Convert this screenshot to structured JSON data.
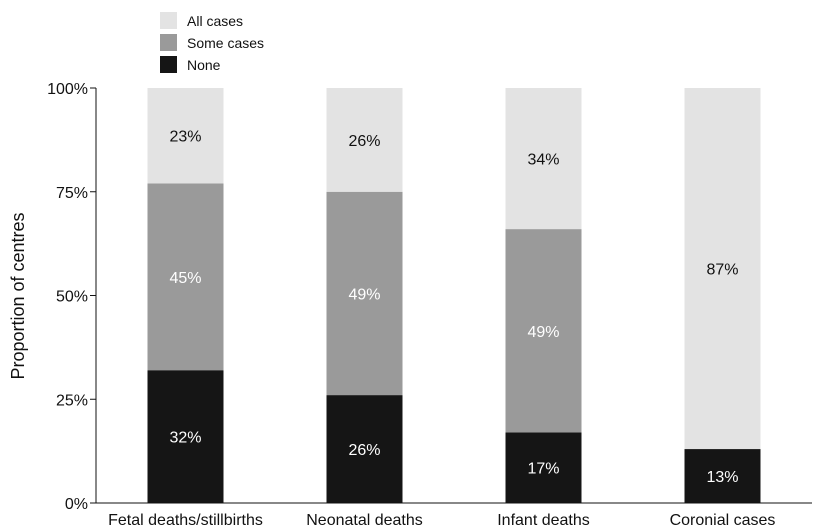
{
  "chart_data": {
    "type": "bar",
    "stacked": true,
    "orientation": "vertical",
    "title": "",
    "xlabel": "",
    "ylabel": "Proportion of centres",
    "ylim": [
      0,
      100
    ],
    "y_ticks": [
      0,
      25,
      50,
      75,
      100
    ],
    "y_tick_labels": [
      "0%",
      "25%",
      "50%",
      "75%",
      "100%"
    ],
    "grid": false,
    "legend_position": "top-left",
    "categories": [
      "Fetal deaths/stillbirths",
      "Neonatal deaths",
      "Infant deaths",
      "Coronial cases"
    ],
    "series": [
      {
        "name": "None",
        "color": "#151515",
        "label_color": "#ffffff",
        "values": [
          32,
          26,
          17,
          13
        ],
        "labels": [
          "32%",
          "26%",
          "17%",
          "13%"
        ]
      },
      {
        "name": "Some cases",
        "color": "#9a9a9a",
        "label_color": "#ffffff",
        "values": [
          45,
          49,
          49,
          0
        ],
        "labels": [
          "45%",
          "49%",
          "49%",
          ""
        ]
      },
      {
        "name": "All cases",
        "color": "#e3e3e3",
        "label_color": "#111111",
        "values": [
          23,
          26,
          34,
          87
        ],
        "labels": [
          "23%",
          "26%",
          "34%",
          "87%"
        ]
      }
    ],
    "legend_order": [
      "All cases",
      "Some cases",
      "None"
    ]
  }
}
